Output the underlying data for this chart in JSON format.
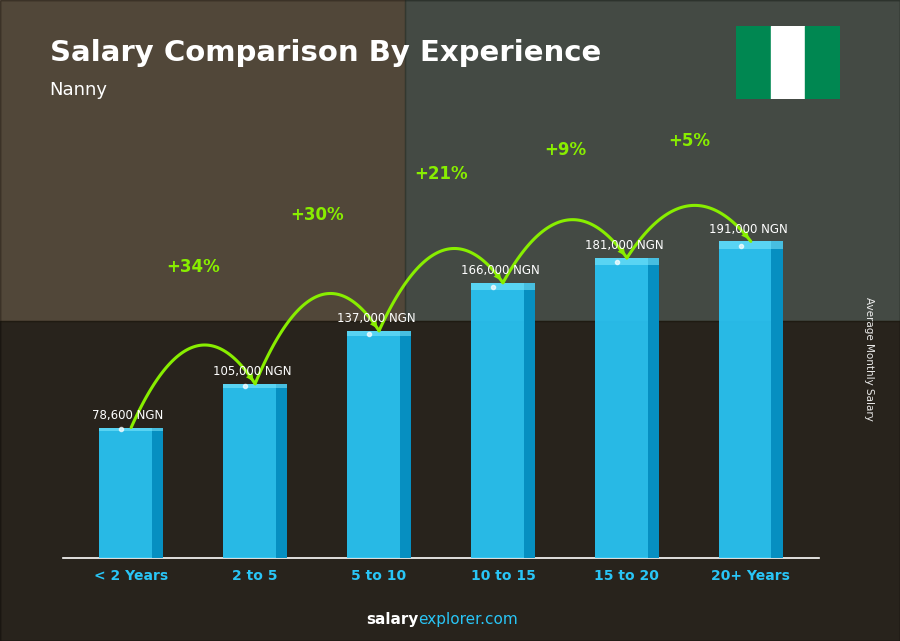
{
  "categories": [
    "< 2 Years",
    "2 to 5",
    "5 to 10",
    "10 to 15",
    "15 to 20",
    "20+ Years"
  ],
  "values": [
    78600,
    105000,
    137000,
    166000,
    181000,
    191000
  ],
  "value_labels": [
    "78,600 NGN",
    "105,000 NGN",
    "137,000 NGN",
    "166,000 NGN",
    "181,000 NGN",
    "191,000 NGN"
  ],
  "pct_labels": [
    "+34%",
    "+30%",
    "+21%",
    "+9%",
    "+5%"
  ],
  "bar_color": "#29c5f6",
  "bar_color_light": "#55d8ff",
  "bar_color_dark": "#0099cc",
  "title": "Salary Comparison By Experience",
  "subtitle": "Nanny",
  "ylabel": "Average Monthly Salary",
  "footer_bold": "salary",
  "footer_normal": "explorer.com",
  "text_color": "#ffffff",
  "pct_color": "#88ee00",
  "value_label_color": "#ffffff",
  "tick_label_color": "#29c5f6",
  "nigeria_flag_green": "#008751",
  "ylim_max": 240000,
  "bg_overlay": "#00000066"
}
